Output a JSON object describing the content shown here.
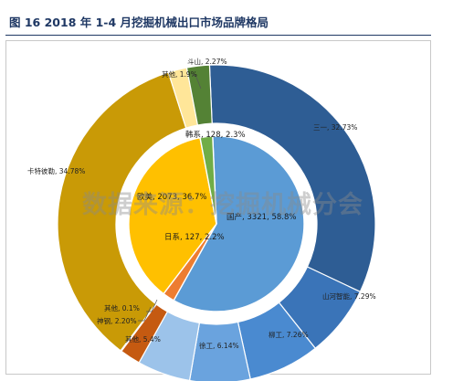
{
  "title": "图 16   2018 年 1-4 月挖掘机械出口市场品牌格局",
  "watermark": "数据来源：挖掘机械分会",
  "chart_data": {
    "type": "pie",
    "subtype": "nested-donut",
    "inner": [
      {
        "name": "国产",
        "value": 3321,
        "percent": 58.8,
        "label": "国产, 3321, 58.8%",
        "color": "#5b9bd5"
      },
      {
        "name": "日系",
        "value": 127,
        "percent": 2.2,
        "label": "日系, 127, 2.2%",
        "color": "#ed7d31"
      },
      {
        "name": "欧美",
        "value": 2073,
        "percent": 36.7,
        "label": "欧美, 2073, 36.7%",
        "color": "#ffc000"
      },
      {
        "name": "韩系",
        "value": 128,
        "percent": 2.3,
        "label": "韩系, 128, 2.3%",
        "color": "#70ad47"
      }
    ],
    "outer": [
      {
        "name": "三一",
        "percent": 32.73,
        "label": "三一, 32.73%",
        "color": "#2e5d94"
      },
      {
        "name": "山河智能",
        "percent": 7.29,
        "label": "山河智能, 7.29%",
        "color": "#3a74b8"
      },
      {
        "name": "柳工",
        "percent": 7.26,
        "label": "柳工, 7.26%",
        "color": "#4a8ad0"
      },
      {
        "name": "徐工",
        "percent": 6.14,
        "label": "徐工, 6.14%",
        "color": "#6aa3de"
      },
      {
        "name": "其他",
        "percent": 5.4,
        "label": "其他, 5.4%",
        "color": "#9cc3ea"
      },
      {
        "name": "神钢",
        "percent": 2.2,
        "label": "神钢, 2.20%",
        "color": "#c55a11"
      },
      {
        "name": "其他",
        "percent": 0.1,
        "label": "其他, 0.1%",
        "color": "#f4b183"
      },
      {
        "name": "卡特彼勒",
        "percent": 34.78,
        "label": "卡特彼勒, 34.78%",
        "color": "#c99a06"
      },
      {
        "name": "其他",
        "percent": 1.9,
        "label": "其他, 1.9%",
        "color": "#ffe699"
      },
      {
        "name": "斗山",
        "percent": 2.27,
        "label": "斗山, 2.27%",
        "color": "#548235"
      }
    ]
  }
}
